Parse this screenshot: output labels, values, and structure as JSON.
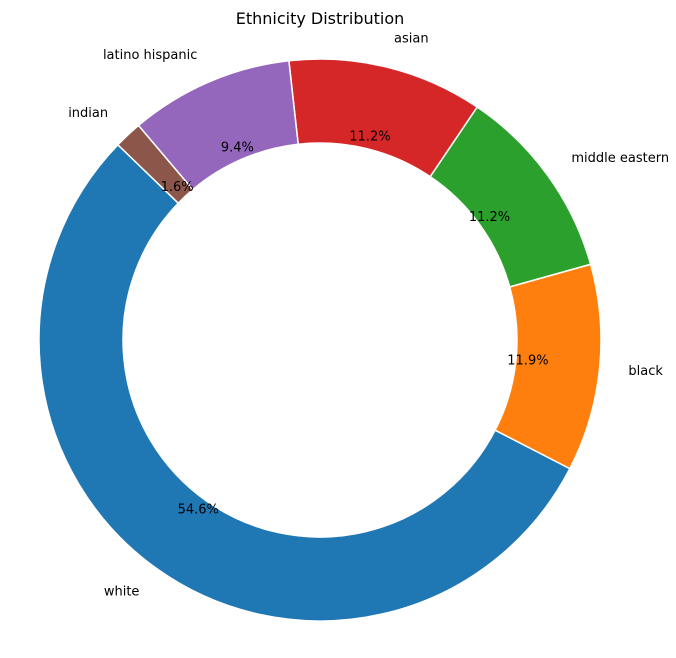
{
  "chart_data": {
    "type": "pie",
    "subtype": "donut",
    "title": "Ethnicity Distribution",
    "slices": [
      {
        "label": "white",
        "value": 54.6,
        "pct_label": "54.6%",
        "color": "#1f77b4"
      },
      {
        "label": "black",
        "value": 11.9,
        "pct_label": "11.9%",
        "color": "#ff7f0e"
      },
      {
        "label": "middle eastern",
        "value": 11.2,
        "pct_label": "11.2%",
        "color": "#2ca02c"
      },
      {
        "label": "asian",
        "value": 11.2,
        "pct_label": "11.2%",
        "color": "#d62728"
      },
      {
        "label": "latino hispanic",
        "value": 9.4,
        "pct_label": "9.4%",
        "color": "#9467bd"
      },
      {
        "label": "indian",
        "value": 1.6,
        "pct_label": "1.6%",
        "color": "#8c564b"
      }
    ],
    "start_angle_deg": 136,
    "direction": "counterclockwise",
    "legend": "none"
  }
}
